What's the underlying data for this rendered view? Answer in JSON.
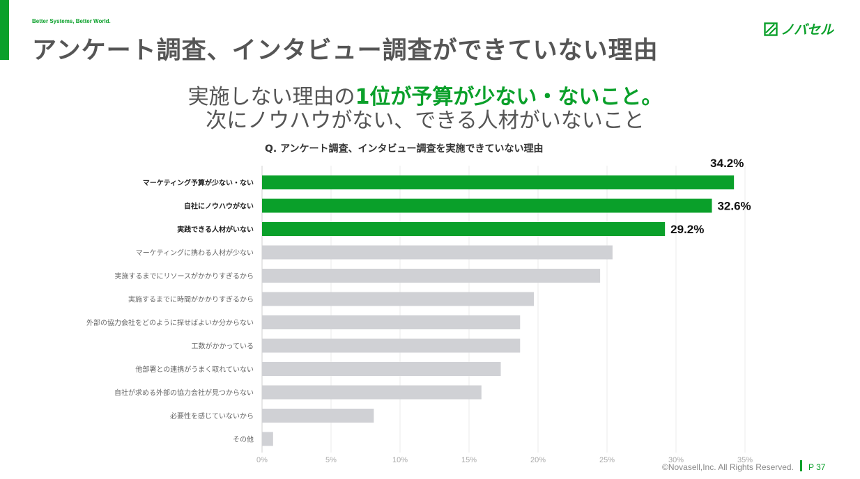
{
  "header": {
    "tagline": "Better Systems, Better World.",
    "title": "アンケート調査、インタビュー調査ができていない理由",
    "logo_text": "ノバセル"
  },
  "headline": {
    "line1_prefix": "実施しない理由の",
    "line1_highlight": "1位が予算が少ない・ないこと。",
    "line2": "次にノウハウがない、できる人材がいないこと"
  },
  "chart_data": {
    "type": "bar",
    "orientation": "horizontal",
    "title": "Q. アンケート調査、インタビュー調査を実施できていない理由",
    "categories": [
      "マーケティング予算が少ない・ない",
      "自社にノウハウがない",
      "実践できる人材がいない",
      "マーケティングに携わる人材が少ない",
      "実施するまでにリソースがかかりすぎるから",
      "実施するまでに時間がかかりすぎるから",
      "外部の協力会社をどのように探せばよいか分からない",
      "工数がかかっている",
      "他部署との連携がうまく取れていない",
      "自社が求める外部の協力会社が見つからない",
      "必要性を感じていないから",
      "その他"
    ],
    "values": [
      34.2,
      32.6,
      29.2,
      25.4,
      24.5,
      19.7,
      18.7,
      18.7,
      17.3,
      15.9,
      8.1,
      0.8
    ],
    "data_labels": [
      "34.2%",
      "32.6%",
      "29.2%",
      "",
      "",
      "",
      "",
      "",
      "",
      "",
      "",
      ""
    ],
    "highlighted": [
      true,
      true,
      true,
      false,
      false,
      false,
      false,
      false,
      false,
      false,
      false,
      false
    ],
    "x_ticks": [
      "0%",
      "5%",
      "10%",
      "15%",
      "20%",
      "25%",
      "30%",
      "35%"
    ],
    "xlim": [
      0,
      35
    ],
    "grid": "vertical",
    "colors": {
      "highlight": "#0aa02a",
      "normal": "#d0d1d5",
      "grid": "#ebebeb"
    }
  },
  "footer": {
    "copyright": "©Novasell,Inc. All Rights Reserved.",
    "page": "P 37"
  },
  "colors": {
    "accent": "#0aa02a"
  }
}
